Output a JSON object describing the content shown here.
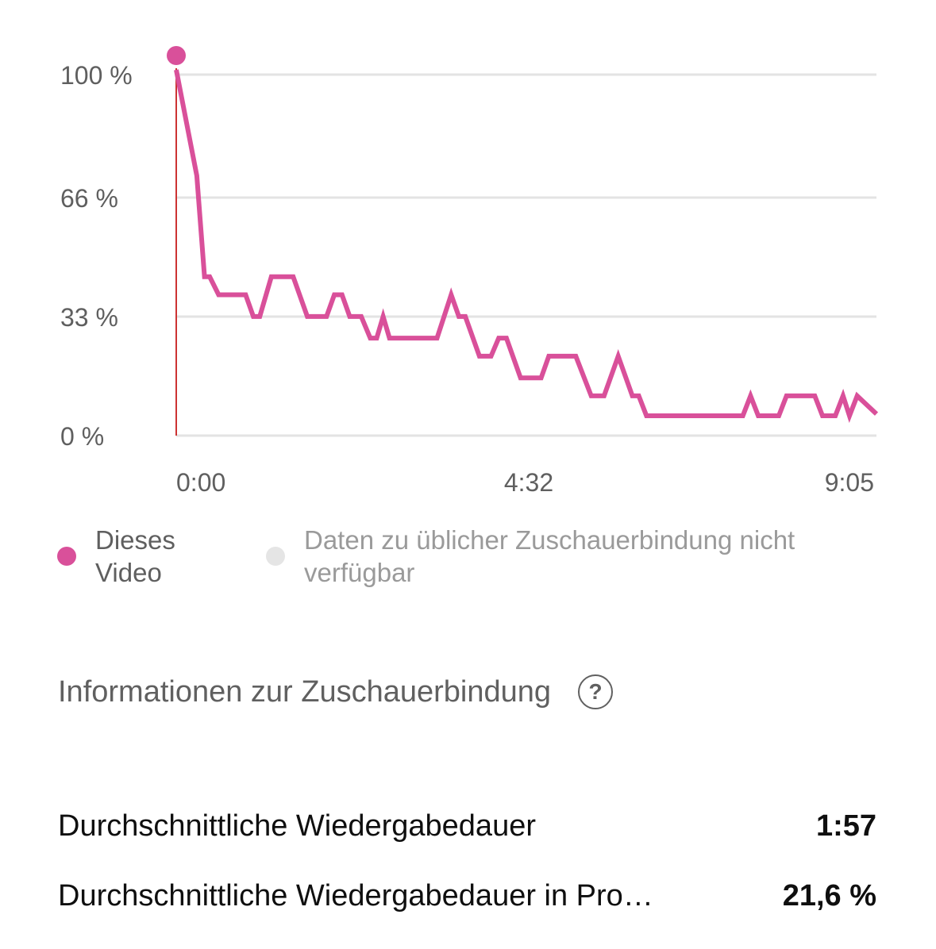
{
  "chart_data": {
    "type": "line",
    "title": "",
    "xlabel": "",
    "ylabel": "",
    "xlim": [
      0,
      545
    ],
    "ylim": [
      0,
      100
    ],
    "y_ticks": [
      {
        "value": 100,
        "label": "100 %"
      },
      {
        "value": 66,
        "label": "66 %"
      },
      {
        "value": 33,
        "label": "33 %"
      },
      {
        "value": 0,
        "label": "0 %"
      }
    ],
    "x_ticks": [
      {
        "value": 0,
        "label": "0:00"
      },
      {
        "value": 272,
        "label": "4:32"
      },
      {
        "value": 545,
        "label": "9:05"
      }
    ],
    "grid": true,
    "series": [
      {
        "name": "Dieses Video",
        "color": "#d9509a",
        "x": [
          0,
          16,
          22,
          26,
          33,
          54,
          60,
          65,
          74,
          91,
          102,
          117,
          123,
          129,
          135,
          144,
          151,
          156,
          161,
          166,
          203,
          214,
          220,
          225,
          236,
          245,
          251,
          257,
          268,
          284,
          290,
          311,
          323,
          333,
          344,
          355,
          360,
          366,
          441,
          447,
          453,
          469,
          475,
          497,
          503,
          513,
          519,
          524,
          530,
          545
        ],
        "values": [
          100,
          72,
          44,
          44,
          39,
          39,
          33,
          33,
          44,
          44,
          33,
          33,
          39,
          39,
          33,
          33,
          27,
          27,
          33,
          27,
          27,
          39,
          33,
          33,
          22,
          22,
          27,
          27,
          16,
          16,
          22,
          22,
          11,
          11,
          22,
          11,
          11,
          5.5,
          5.5,
          11,
          5.5,
          5.5,
          11,
          11,
          5.5,
          5.5,
          11,
          5.5,
          11,
          6
        ]
      }
    ]
  },
  "legend": {
    "this_video": {
      "line1": "Dieses",
      "line2": "Video",
      "color": "#d9509a"
    },
    "typical": {
      "line1": "Daten zu üblicher Zuschauerbindung nicht",
      "line2": "verfügbar",
      "color": "#e5e5e5"
    }
  },
  "info": {
    "title": "Informationen zur Zuschauerbindung",
    "help_glyph": "?"
  },
  "stats": [
    {
      "label": "Durchschnittliche Wiedergabedauer",
      "value": "1:57"
    },
    {
      "label": "Durchschnittliche Wiedergabedauer in Pro…",
      "value": "21,6 %"
    }
  ]
}
